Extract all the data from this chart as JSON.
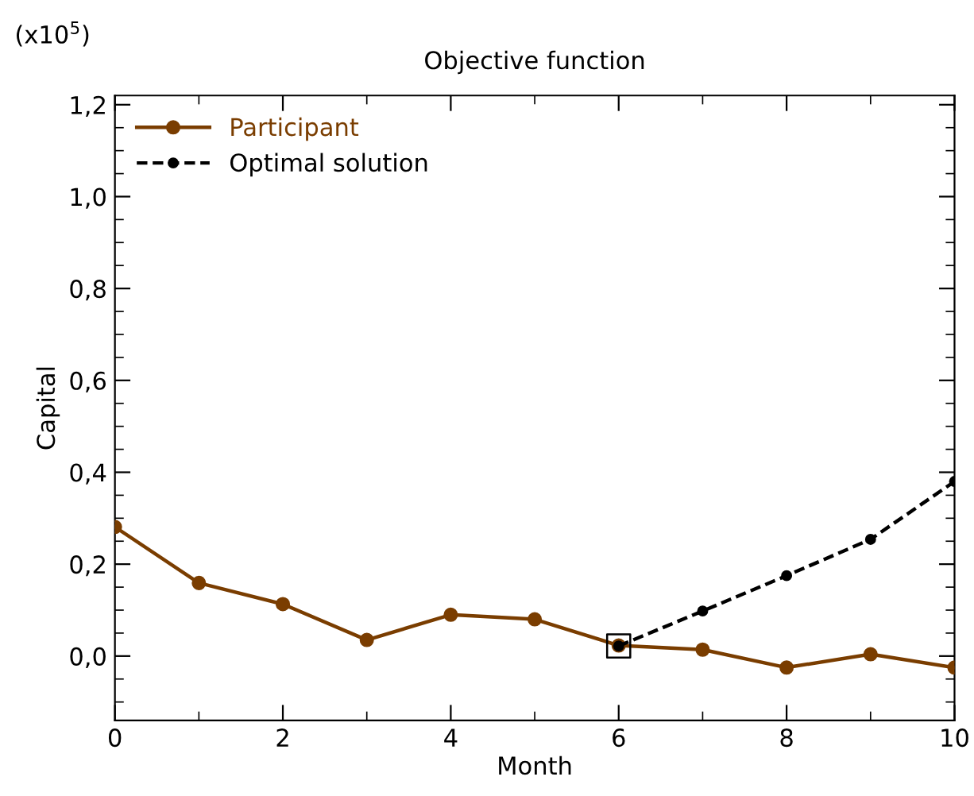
{
  "chart_data": {
    "type": "line",
    "title": "Objective function",
    "xlabel": "Month",
    "ylabel": "Capital",
    "annotations": [
      "(x10$^{5}$)"
    ],
    "x": [
      0,
      1,
      2,
      3,
      4,
      5,
      6,
      7,
      8,
      9,
      10
    ],
    "series": [
      {
        "name": "Participant",
        "color": "#7a3d00",
        "line_style": "solid",
        "marker": "circle",
        "values": [
          0.281,
          0.159,
          0.113,
          0.035,
          0.09,
          0.08,
          0.023,
          0.014,
          -0.025,
          0.004,
          -0.025
        ]
      },
      {
        "name": "Optimal solution",
        "color": "#000000",
        "line_style": "dashed",
        "marker": "circle",
        "values": [
          null,
          null,
          null,
          null,
          null,
          null,
          0.022,
          0.098,
          0.175,
          0.254,
          0.38
        ]
      },
      {
        "type": "scatter",
        "color": "#000000",
        "marker": "square",
        "values": [
          null,
          null,
          null,
          null,
          null,
          null,
          0.022,
          null,
          null,
          null,
          null
        ]
      }
    ],
    "xlim": [
      0,
      10
    ],
    "xticks": [
      0,
      2,
      4,
      6,
      8,
      10
    ],
    "ylim": [
      -0.14,
      1.22
    ],
    "yticks": [
      {
        "value": 0.0,
        "label": "0,0"
      },
      {
        "value": 0.2,
        "label": "0,2"
      },
      {
        "value": 0.4,
        "label": "0,4"
      },
      {
        "value": 0.6,
        "label": "0,6"
      },
      {
        "value": 0.8,
        "label": "0,8"
      },
      {
        "value": 1.0,
        "label": "1,0"
      },
      {
        "value": 1.2,
        "label": "1,2"
      }
    ],
    "grid": false,
    "legend": "top left"
  }
}
